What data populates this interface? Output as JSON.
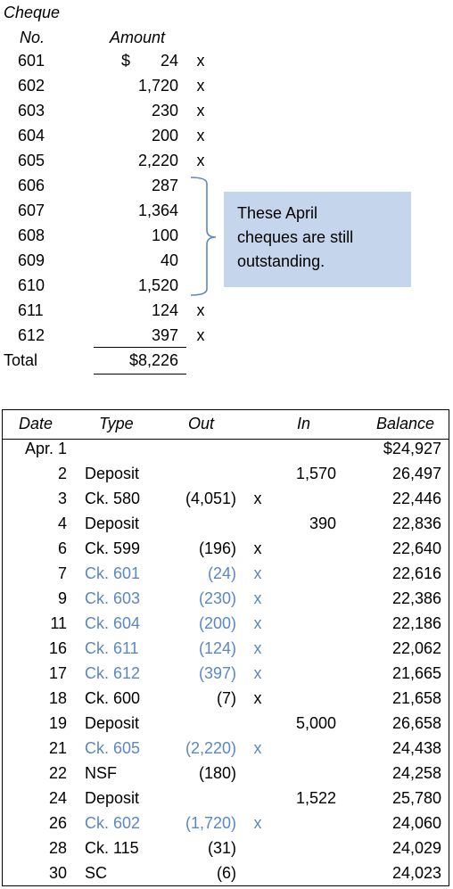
{
  "cheques": {
    "header_line1": "Cheque",
    "header_no": "No.",
    "header_amount": "Amount",
    "currency": "$",
    "rows": [
      {
        "no": "601",
        "amount": "24",
        "mark": "x"
      },
      {
        "no": "602",
        "amount": "1,720",
        "mark": "x"
      },
      {
        "no": "603",
        "amount": "230",
        "mark": "x"
      },
      {
        "no": "604",
        "amount": "200",
        "mark": "x"
      },
      {
        "no": "605",
        "amount": "2,220",
        "mark": "x"
      },
      {
        "no": "606",
        "amount": "287",
        "mark": ""
      },
      {
        "no": "607",
        "amount": "1,364",
        "mark": ""
      },
      {
        "no": "608",
        "amount": "100",
        "mark": ""
      },
      {
        "no": "609",
        "amount": "40",
        "mark": ""
      },
      {
        "no": "610",
        "amount": "1,520",
        "mark": ""
      },
      {
        "no": "611",
        "amount": "124",
        "mark": "x"
      },
      {
        "no": "612",
        "amount": "397",
        "mark": "x"
      }
    ],
    "total_label": "Total",
    "total_value": "$8,226"
  },
  "note": {
    "lines": [
      "These April",
      "cheques are still",
      "outstanding."
    ],
    "bg_color": "#c5d5ec",
    "bracket_color": "#5a87c5"
  },
  "ledger": {
    "headers": {
      "date": "Date",
      "type": "Type",
      "out": "Out",
      "in": "In",
      "balance": "Balance"
    },
    "highlight_color": "#5a87c5",
    "rows": [
      {
        "date": "Apr. 1",
        "type": "",
        "out": "",
        "mark": "",
        "in": "",
        "balance": "$24,927",
        "hl": false
      },
      {
        "date": "2",
        "type": "Deposit",
        "out": "",
        "mark": "",
        "in": "1,570",
        "balance": "26,497",
        "hl": false
      },
      {
        "date": "3",
        "type": "Ck. 580",
        "out": "(4,051)",
        "mark": "x",
        "in": "",
        "balance": "22,446",
        "hl": false
      },
      {
        "date": "4",
        "type": "Deposit",
        "out": "",
        "mark": "",
        "in": "390",
        "balance": "22,836",
        "hl": false
      },
      {
        "date": "6",
        "type": "Ck. 599",
        "out": "(196)",
        "mark": "x",
        "in": "",
        "balance": "22,640",
        "hl": false
      },
      {
        "date": "7",
        "type": "Ck. 601",
        "out": "(24)",
        "mark": "x",
        "in": "",
        "balance": "22,616",
        "hl": true
      },
      {
        "date": "9",
        "type": "Ck. 603",
        "out": "(230)",
        "mark": "x",
        "in": "",
        "balance": "22,386",
        "hl": true
      },
      {
        "date": "11",
        "type": "Ck. 604",
        "out": "(200)",
        "mark": "x",
        "in": "",
        "balance": "22,186",
        "hl": true
      },
      {
        "date": "16",
        "type": "Ck. 611",
        "out": "(124)",
        "mark": "x",
        "in": "",
        "balance": "22,062",
        "hl": true
      },
      {
        "date": "17",
        "type": "Ck. 612",
        "out": "(397)",
        "mark": "x",
        "in": "",
        "balance": "21,665",
        "hl": true
      },
      {
        "date": "18",
        "type": "Ck. 600",
        "out": "(7)",
        "mark": "x",
        "in": "",
        "balance": "21,658",
        "hl": false
      },
      {
        "date": "19",
        "type": "Deposit",
        "out": "",
        "mark": "",
        "in": "5,000",
        "balance": "26,658",
        "hl": false
      },
      {
        "date": "21",
        "type": "Ck. 605",
        "out": "(2,220)",
        "mark": "x",
        "in": "",
        "balance": "24,438",
        "hl": true
      },
      {
        "date": "22",
        "type": "NSF",
        "out": "(180)",
        "mark": "",
        "in": "",
        "balance": "24,258",
        "hl": false
      },
      {
        "date": "24",
        "type": "Deposit",
        "out": "",
        "mark": "",
        "in": "1,522",
        "balance": "25,780",
        "hl": false
      },
      {
        "date": "26",
        "type": "Ck. 602",
        "out": "(1,720)",
        "mark": "x",
        "in": "",
        "balance": "24,060",
        "hl": true
      },
      {
        "date": "28",
        "type": "Ck. 115",
        "out": "(31)",
        "mark": "",
        "in": "",
        "balance": "24,029",
        "hl": false
      },
      {
        "date": "30",
        "type": "SC",
        "out": "(6)",
        "mark": "",
        "in": "",
        "balance": "24,023",
        "hl": false
      }
    ]
  }
}
